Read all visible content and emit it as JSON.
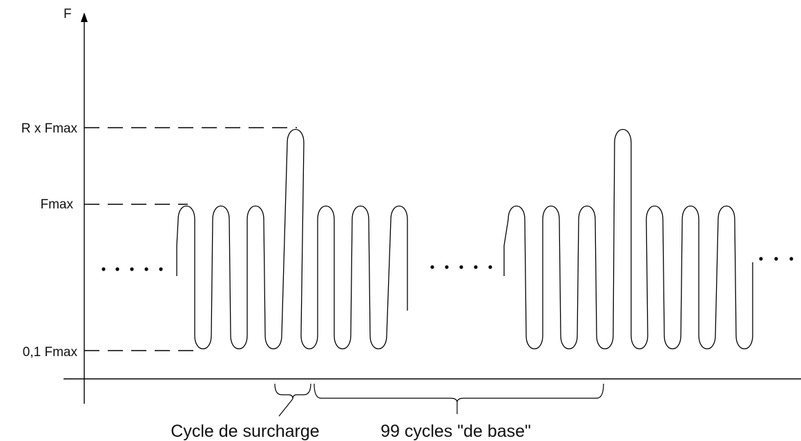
{
  "diagram": {
    "axis_label": "F",
    "levels": {
      "peak": "R x Fmax",
      "max": "Fmax",
      "min": "0,1 Fmax"
    },
    "braces": {
      "overload": "Cycle de surcharge",
      "base": "99 cycles \"de base\""
    }
  }
}
